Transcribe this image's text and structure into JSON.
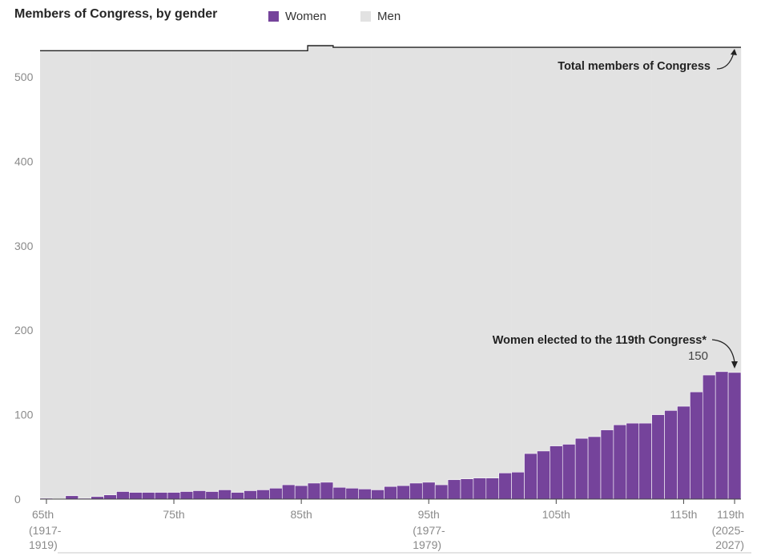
{
  "chart_data": {
    "type": "bar",
    "title": "Members of Congress, by gender",
    "legend": [
      {
        "name": "Women",
        "color": "#75439b"
      },
      {
        "name": "Men",
        "color": "#e2e2e2"
      }
    ],
    "x_start": 65,
    "x_end": 119,
    "categories": [
      "65th",
      "66th",
      "67th",
      "68th",
      "69th",
      "70th",
      "71st",
      "72nd",
      "73rd",
      "74th",
      "75th",
      "76th",
      "77th",
      "78th",
      "79th",
      "80th",
      "81st",
      "82nd",
      "83rd",
      "84th",
      "85th",
      "86th",
      "87th",
      "88th",
      "89th",
      "90th",
      "91st",
      "92nd",
      "93rd",
      "94th",
      "95th",
      "96th",
      "97th",
      "98th",
      "99th",
      "100th",
      "101st",
      "102nd",
      "103rd",
      "104th",
      "105th",
      "106th",
      "107th",
      "108th",
      "109th",
      "110th",
      "111th",
      "112th",
      "113th",
      "114th",
      "115th",
      "116th",
      "117th",
      "118th",
      "119th"
    ],
    "series": [
      {
        "name": "Women",
        "values": [
          1,
          0,
          4,
          1,
          3,
          5,
          9,
          8,
          8,
          8,
          8,
          9,
          10,
          9,
          11,
          8,
          10,
          11,
          13,
          17,
          16,
          19,
          20,
          14,
          13,
          12,
          11,
          15,
          16,
          19,
          20,
          17,
          23,
          24,
          25,
          25,
          31,
          32,
          54,
          57,
          63,
          65,
          72,
          74,
          82,
          88,
          90,
          90,
          100,
          105,
          110,
          127,
          147,
          151,
          150
        ]
      },
      {
        "name": "Total members of Congress",
        "values": [
          531,
          531,
          531,
          531,
          531,
          531,
          531,
          531,
          531,
          531,
          531,
          531,
          531,
          531,
          531,
          531,
          531,
          531,
          531,
          531,
          531,
          537,
          537,
          535,
          535,
          535,
          535,
          535,
          535,
          535,
          535,
          535,
          535,
          535,
          535,
          535,
          535,
          535,
          535,
          535,
          535,
          535,
          535,
          535,
          535,
          535,
          535,
          535,
          535,
          535,
          535,
          535,
          535,
          535,
          535
        ]
      }
    ],
    "ylim": [
      0,
      535
    ],
    "yticks": [
      0,
      100,
      200,
      300,
      400,
      500
    ],
    "xticks": [
      {
        "at": 65,
        "label": "65th",
        "sub": [
          "(1917-",
          "1919)"
        ]
      },
      {
        "at": 75,
        "label": "75th",
        "sub": []
      },
      {
        "at": 85,
        "label": "85th",
        "sub": []
      },
      {
        "at": 95,
        "label": "95th",
        "sub": [
          "(1977-",
          "1979)"
        ]
      },
      {
        "at": 105,
        "label": "105th",
        "sub": []
      },
      {
        "at": 115,
        "label": "115th",
        "sub": []
      },
      {
        "at": 119,
        "label": "119th",
        "sub": [
          "(2025-",
          "2027)"
        ]
      }
    ],
    "annotations": {
      "total_label": "Total members of Congress",
      "women_label": "Women elected to the 119th Congress*",
      "women_value": "150"
    },
    "grid": true
  }
}
